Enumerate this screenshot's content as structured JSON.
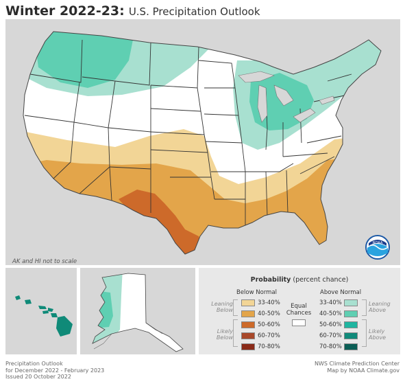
{
  "title": {
    "main": "Winter 2022-23:",
    "sub": "U.S. Precipitation Outlook"
  },
  "map": {
    "note": "AK and HI not to scale",
    "colors": {
      "background": "#d7d7d7",
      "land": "#ffffff",
      "below_33_40": "#f2d596",
      "below_40_50": "#e3a54a",
      "below_50_60": "#cd6a2a",
      "above_33_40": "#a8e0d0",
      "above_40_50": "#5fcfb2",
      "borders": "#333333"
    }
  },
  "logo": {
    "text": "NOAA"
  },
  "legend": {
    "title": "Probability",
    "title_suffix": "(percent chance)",
    "below_header": "Below Normal",
    "above_header": "Above Normal",
    "leaning_below": "Leaning Below",
    "likely_below": "Likely Below",
    "leaning_above": "Leaning Above",
    "likely_above": "Likely Above",
    "equal": "Equal Chances",
    "below": [
      {
        "label": "33-40%",
        "color": "#f2d596"
      },
      {
        "label": "40-50%",
        "color": "#e3a54a"
      },
      {
        "label": "50-60%",
        "color": "#cd6a2a"
      },
      {
        "label": "60-70%",
        "color": "#a8482a"
      },
      {
        "label": "70-80%",
        "color": "#8a2a18"
      }
    ],
    "above": [
      {
        "label": "33-40%",
        "color": "#a8e0d0"
      },
      {
        "label": "40-50%",
        "color": "#5fcfb2"
      },
      {
        "label": "50-60%",
        "color": "#1fb5a0"
      },
      {
        "label": "60-70%",
        "color": "#108a7a"
      },
      {
        "label": "70-80%",
        "color": "#0a5e55"
      }
    ],
    "equal_color": "#ffffff"
  },
  "footer": {
    "left1": "Precipitation Outlook",
    "left2": "for December 2022 - February 2023",
    "left3": "Issued 20 October 2022",
    "right1": "NWS Climate Prediction Center",
    "right2": "Map by NOAA Climate.gov"
  }
}
